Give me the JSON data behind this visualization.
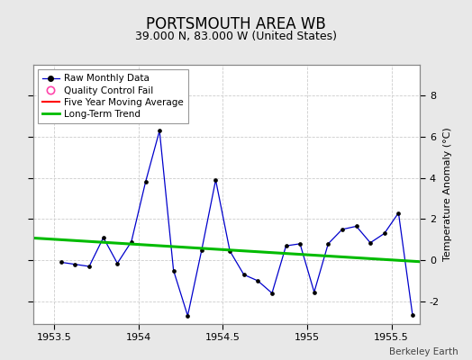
{
  "title": "PORTSMOUTH AREA WB",
  "subtitle": "39.000 N, 83.000 W (United States)",
  "watermark": "Berkeley Earth",
  "ylabel_right": "Temperature Anomaly (°C)",
  "background_color": "#e8e8e8",
  "plot_bg_color": "#ffffff",
  "xlim": [
    1953.375,
    1955.67
  ],
  "ylim": [
    -3.1,
    9.5
  ],
  "yticks": [
    -2,
    0,
    2,
    4,
    6,
    8
  ],
  "xticks": [
    1953.5,
    1954.0,
    1954.5,
    1955.0,
    1955.5
  ],
  "xtick_labels": [
    "1953.5",
    "1954",
    "1954.5",
    "1955",
    "1955.5"
  ],
  "raw_x": [
    1953.542,
    1953.625,
    1953.708,
    1953.792,
    1953.875,
    1953.958,
    1954.042,
    1954.125,
    1954.208,
    1954.292,
    1954.375,
    1954.458,
    1954.542,
    1954.625,
    1954.708,
    1954.792,
    1954.875,
    1954.958,
    1955.042,
    1955.125,
    1955.208,
    1955.292,
    1955.375,
    1955.458,
    1955.542,
    1955.625
  ],
  "raw_y": [
    -0.1,
    -0.2,
    -0.3,
    1.1,
    -0.15,
    0.9,
    3.8,
    6.3,
    -0.5,
    -2.7,
    0.5,
    3.9,
    0.45,
    -0.7,
    -1.0,
    -1.6,
    0.7,
    0.8,
    -1.55,
    0.8,
    1.5,
    1.65,
    0.85,
    1.3,
    2.3,
    -2.65
  ],
  "trend_x": [
    1953.375,
    1955.67
  ],
  "trend_y": [
    1.08,
    -0.07
  ],
  "raw_line_color": "#0000cc",
  "raw_marker_color": "#000000",
  "trend_color": "#00bb00",
  "moving_avg_color": "#ff0000",
  "qc_fail_color": "#ff44aa",
  "grid_color": "#cccccc",
  "title_fontsize": 12,
  "subtitle_fontsize": 9,
  "tick_fontsize": 8,
  "ylabel_fontsize": 8
}
